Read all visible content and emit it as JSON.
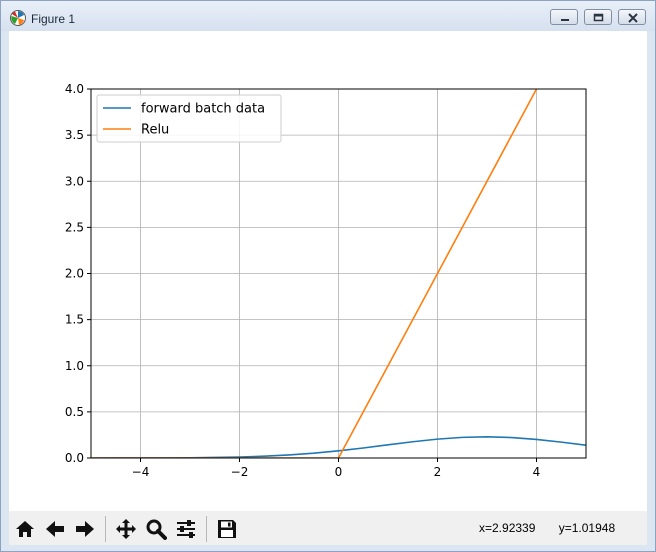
{
  "window": {
    "title": "Figure 1",
    "icon": "matplotlib-icon",
    "controls": [
      "minimize-icon",
      "restore-icon",
      "close-icon"
    ]
  },
  "toolbar": {
    "buttons": [
      "home-icon",
      "back-arrow-icon",
      "forward-arrow-icon",
      "pan-icon",
      "zoom-icon",
      "configure-subplots-icon",
      "save-icon"
    ],
    "coords_x": "x=2.92339",
    "coords_y": "y=1.01948"
  },
  "chart_data": {
    "type": "line",
    "title": "",
    "xlabel": "",
    "ylabel": "",
    "xlim": [
      -5,
      5
    ],
    "ylim": [
      0,
      4.0
    ],
    "grid": true,
    "legend_position": "top-left",
    "x_ticks": [
      -4,
      -2,
      0,
      2,
      4
    ],
    "x_tick_labels": [
      "−4",
      "−2",
      "0",
      "2",
      "4"
    ],
    "y_ticks": [
      0,
      0.5,
      1,
      1.5,
      2,
      2.5,
      3,
      3.5,
      4
    ],
    "y_tick_labels": [
      "0.0",
      "0.5",
      "1.0",
      "1.5",
      "2.0",
      "2.5",
      "3.0",
      "3.5",
      "4.0"
    ],
    "series": [
      {
        "name": "forward batch data",
        "color": "#1f77b4",
        "x": [
          -5,
          -4.5,
          -4,
          -3.5,
          -3,
          -2.5,
          -2,
          -1.5,
          -1,
          -0.5,
          0,
          0.5,
          1,
          1.5,
          2,
          2.5,
          3,
          3.5,
          4,
          4.5,
          5
        ],
        "y": [
          0.0001,
          0.0002,
          0.0005,
          0.0012,
          0.0027,
          0.0057,
          0.011,
          0.0196,
          0.0331,
          0.0522,
          0.0776,
          0.1085,
          0.1426,
          0.1761,
          0.2046,
          0.2236,
          0.2298,
          0.222,
          0.2016,
          0.1722,
          0.1383
        ]
      },
      {
        "name": "Relu",
        "color": "#ff7f0e",
        "x": [
          -5,
          0,
          4,
          4.2
        ],
        "y": [
          0,
          0,
          4,
          4.2
        ]
      }
    ]
  }
}
